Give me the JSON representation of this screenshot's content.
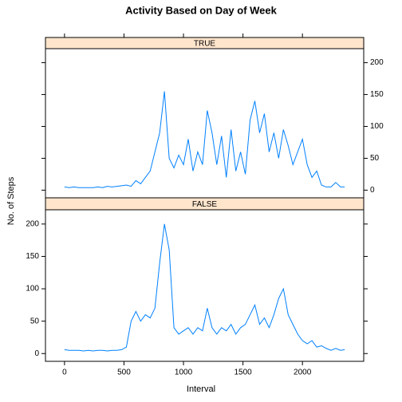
{
  "chart_data": {
    "type": "line",
    "title": "Activity Based on Day of Week",
    "xlabel": "Interval",
    "ylabel": "No. of Steps",
    "color": "#0080ff",
    "strip_color": "#ffe5cc",
    "xlim": [
      -160,
      2515
    ],
    "ylim": [
      -12,
      222
    ],
    "xticks": [
      0,
      500,
      1000,
      1500,
      2000
    ],
    "yticks": [
      0,
      50,
      100,
      150,
      200
    ],
    "x": [
      0,
      40,
      80,
      120,
      160,
      200,
      240,
      280,
      320,
      360,
      400,
      440,
      480,
      520,
      560,
      600,
      640,
      680,
      720,
      760,
      800,
      840,
      880,
      920,
      960,
      1000,
      1040,
      1080,
      1120,
      1160,
      1200,
      1240,
      1280,
      1320,
      1360,
      1400,
      1440,
      1480,
      1520,
      1560,
      1600,
      1640,
      1680,
      1720,
      1760,
      1800,
      1840,
      1880,
      1920,
      1960,
      2000,
      2040,
      2080,
      2120,
      2160,
      2200,
      2240,
      2280,
      2320,
      2355
    ],
    "series": [
      {
        "name": "TRUE",
        "values": [
          5,
          4,
          5,
          4,
          4,
          4,
          4,
          5,
          4,
          6,
          5,
          6,
          7,
          8,
          6,
          15,
          10,
          20,
          30,
          60,
          90,
          155,
          50,
          35,
          55,
          40,
          80,
          30,
          60,
          40,
          125,
          90,
          40,
          85,
          20,
          95,
          30,
          60,
          25,
          110,
          140,
          90,
          120,
          60,
          90,
          50,
          95,
          70,
          40,
          60,
          80,
          40,
          20,
          30,
          8,
          5,
          5,
          12,
          5,
          5
        ]
      },
      {
        "name": "FALSE",
        "values": [
          6,
          5,
          5,
          5,
          4,
          5,
          4,
          5,
          5,
          4,
          5,
          5,
          6,
          10,
          50,
          65,
          50,
          60,
          55,
          70,
          140,
          200,
          160,
          40,
          30,
          35,
          40,
          30,
          40,
          35,
          70,
          40,
          30,
          40,
          35,
          45,
          30,
          40,
          45,
          60,
          75,
          45,
          55,
          40,
          60,
          85,
          100,
          60,
          45,
          30,
          20,
          15,
          20,
          10,
          12,
          8,
          5,
          8,
          5,
          6
        ]
      }
    ]
  }
}
